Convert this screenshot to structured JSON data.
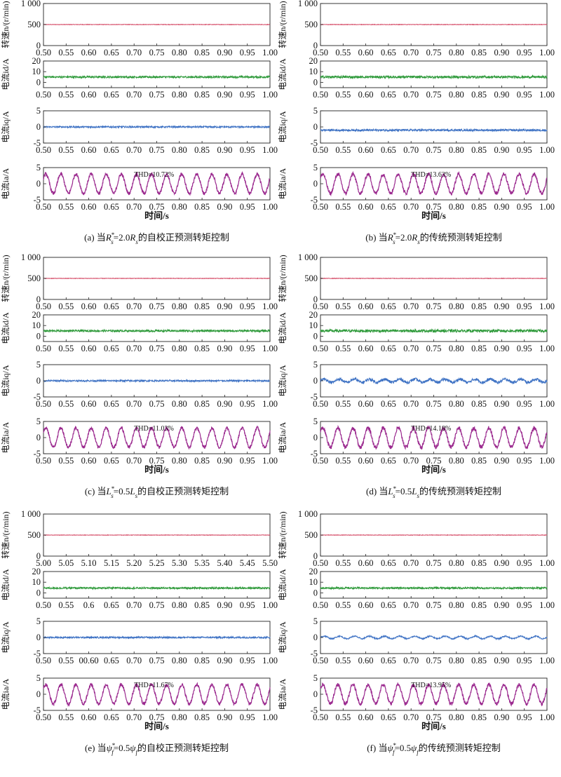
{
  "chart_data": [
    {
      "type": "line",
      "caption": "(a) 当R*s=2.0Rs的自校正预测转矩控制",
      "caption_parts": [
        "(a) 当",
        "R",
        "*",
        "s",
        "=2.0",
        "R",
        "s",
        "的自校正预测转矩控制"
      ],
      "xlabel": "时间/s",
      "panels": [
        {
          "ylabel": "转速n/(r/min)",
          "yticks": [
            "0",
            "500",
            "1 000"
          ],
          "ylim": [
            0,
            1000
          ],
          "xticks": [
            "0.50",
            "0.55",
            "0.60",
            "0.65",
            "0.70",
            "0.75",
            "0.80",
            "0.85",
            "0.90",
            "0.95",
            "1.00"
          ],
          "xlim": [
            0.5,
            1.0
          ],
          "signal": {
            "kind": "flat",
            "level": 500,
            "noise": 6
          },
          "color": "#d64f6a"
        },
        {
          "ylabel": "电流id/A",
          "yticks": [
            "0",
            "10",
            "20"
          ],
          "ylim": [
            -5,
            20
          ],
          "xticks": [
            "0.50",
            "0.55",
            "0.60",
            "0.65",
            "0.70",
            "0.75",
            "0.80",
            "0.85",
            "0.90",
            "0.95",
            "1.00"
          ],
          "xlim": [
            0.5,
            1.0
          ],
          "signal": {
            "kind": "flat",
            "level": 5,
            "noise": 0.9
          },
          "color": "#2e9a3a"
        },
        {
          "ylabel": "电流iq/A",
          "yticks": [
            "-5",
            "0",
            "5"
          ],
          "ylim": [
            -5,
            5
          ],
          "xticks": [
            "0.50",
            "0.55",
            "0.60",
            "0.65",
            "0.70",
            "0.75",
            "0.80",
            "0.85",
            "0.90",
            "0.95",
            "1.00"
          ],
          "xlim": [
            0.5,
            1.0
          ],
          "signal": {
            "kind": "flat",
            "level": 0,
            "noise": 0.25
          },
          "color": "#3e72c4"
        },
        {
          "ylabel": "电流ia/A",
          "yticks": [
            "-5",
            "0",
            "5"
          ],
          "ylim": [
            -5,
            5
          ],
          "xticks": [
            "0.50",
            "0.55",
            "0.60",
            "0.65",
            "0.70",
            "0.75",
            "0.80",
            "0.85",
            "0.90",
            "0.95",
            "1.00"
          ],
          "xlim": [
            0.5,
            1.0
          ],
          "signal": {
            "kind": "sine",
            "amplitude": 3,
            "frequency": 30,
            "noise": 0.5
          },
          "color": "#9b2a8f",
          "annotation": "THD=10.72%"
        }
      ]
    },
    {
      "type": "line",
      "caption": "(b) 当R*s=2.0Rs的传统预测转矩控制",
      "caption_parts": [
        "(b) 当",
        "R",
        "*",
        "s",
        "=2.0",
        "R",
        "s",
        "的传统预测转矩控制"
      ],
      "xlabel": "时间/s",
      "panels": [
        {
          "ylabel": "转速n/(r/min)",
          "yticks": [
            "0",
            "500",
            "1 000"
          ],
          "ylim": [
            0,
            1000
          ],
          "xticks": [
            "0.50",
            "0.55",
            "0.60",
            "0.65",
            "0.70",
            "0.75",
            "0.80",
            "0.85",
            "0.90",
            "0.95",
            "1.00"
          ],
          "xlim": [
            0.5,
            1.0
          ],
          "signal": {
            "kind": "flat",
            "level": 500,
            "noise": 6
          },
          "color": "#d64f6a"
        },
        {
          "ylabel": "电流id/A",
          "yticks": [
            "0",
            "10",
            "20"
          ],
          "ylim": [
            -5,
            20
          ],
          "xticks": [
            "0.50",
            "0.55",
            "0.60",
            "0.65",
            "0.70",
            "0.75",
            "0.80",
            "0.85",
            "0.90",
            "0.95",
            "1.00"
          ],
          "xlim": [
            0.5,
            1.0
          ],
          "signal": {
            "kind": "flat",
            "level": 5,
            "noise": 1.1
          },
          "color": "#2e9a3a"
        },
        {
          "ylabel": "电流iq/A",
          "yticks": [
            "-5",
            "0",
            "5"
          ],
          "ylim": [
            -5,
            5
          ],
          "xticks": [
            "0.50",
            "0.55",
            "0.60",
            "0.65",
            "0.70",
            "0.75",
            "0.80",
            "0.85",
            "0.90",
            "0.95",
            "1.00"
          ],
          "xlim": [
            0.5,
            1.0
          ],
          "signal": {
            "kind": "flat",
            "level": -1,
            "noise": 0.3
          },
          "color": "#3e72c4"
        },
        {
          "ylabel": "电流ia/A",
          "yticks": [
            "-5",
            "0",
            "5"
          ],
          "ylim": [
            -5,
            5
          ],
          "xticks": [
            "0.50",
            "0.55",
            "0.60",
            "0.65",
            "0.70",
            "0.75",
            "0.80",
            "0.85",
            "0.90",
            "0.95",
            "1.00"
          ],
          "xlim": [
            0.5,
            1.0
          ],
          "signal": {
            "kind": "sine",
            "amplitude": 3,
            "frequency": 30,
            "noise": 0.55
          },
          "color": "#9b2a8f",
          "annotation": "THD=13.63%"
        }
      ]
    },
    {
      "type": "line",
      "caption": "(c) 当L*s=0.5Ls的自校正预测转矩控制",
      "caption_parts": [
        "(c) 当",
        "L",
        "*",
        "s",
        "=0.5",
        "L",
        "s",
        "的自校正预测转矩控制"
      ],
      "xlabel": "时间/s",
      "panels": [
        {
          "ylabel": "转速n/(r/min)",
          "yticks": [
            "0",
            "500",
            "1 000"
          ],
          "ylim": [
            0,
            1000
          ],
          "xticks": [
            "0.50",
            "0.55",
            "0.60",
            "0.65",
            "0.70",
            "0.75",
            "0.80",
            "0.85",
            "0.90",
            "0.95",
            "1.00"
          ],
          "xlim": [
            0.5,
            1.0
          ],
          "signal": {
            "kind": "flat",
            "level": 500,
            "noise": 6
          },
          "color": "#d64f6a"
        },
        {
          "ylabel": "电流id/A",
          "yticks": [
            "0",
            "10",
            "20"
          ],
          "ylim": [
            -5,
            20
          ],
          "xticks": [
            "0.50",
            "0.55",
            "0.60",
            "0.65",
            "0.70",
            "0.75",
            "0.80",
            "0.85",
            "0.90",
            "0.95",
            "1.00"
          ],
          "xlim": [
            0.5,
            1.0
          ],
          "signal": {
            "kind": "flat",
            "level": 5,
            "noise": 0.9
          },
          "color": "#2e9a3a"
        },
        {
          "ylabel": "电流iq/A",
          "yticks": [
            "-5",
            "0",
            "5"
          ],
          "ylim": [
            -5,
            5
          ],
          "xticks": [
            "0.50",
            "0.55",
            "0.60",
            "0.65",
            "0.70",
            "0.75",
            "0.80",
            "0.85",
            "0.90",
            "0.95",
            "1.00"
          ],
          "xlim": [
            0.5,
            1.0
          ],
          "signal": {
            "kind": "flat",
            "level": 0,
            "noise": 0.25
          },
          "color": "#3e72c4"
        },
        {
          "ylabel": "电流ia/A",
          "yticks": [
            "-5",
            "0",
            "5"
          ],
          "ylim": [
            -5,
            5
          ],
          "xticks": [
            "0.50",
            "0.55",
            "0.60",
            "0.65",
            "0.70",
            "0.75",
            "0.80",
            "0.85",
            "0.90",
            "0.95",
            "1.00"
          ],
          "xlim": [
            0.5,
            1.0
          ],
          "signal": {
            "kind": "sine",
            "amplitude": 3,
            "frequency": 30,
            "noise": 0.5
          },
          "color": "#9b2a8f",
          "annotation": "THD=11.03%"
        }
      ]
    },
    {
      "type": "line",
      "caption": "(d) 当L*s=0.5Ls的传统预测转矩控制",
      "caption_parts": [
        "(d) 当",
        "L",
        "*",
        "s",
        "=0.5",
        "L",
        "s",
        "的传统预测转矩控制"
      ],
      "xlabel": "时间/s",
      "panels": [
        {
          "ylabel": "转速n/(r/min)",
          "yticks": [
            "0",
            "500",
            "1 000"
          ],
          "ylim": [
            0,
            1000
          ],
          "xticks": [
            "0.50",
            "0.55",
            "0.60",
            "0.65",
            "0.70",
            "0.75",
            "0.80",
            "0.85",
            "0.90",
            "0.95",
            "1.00"
          ],
          "xlim": [
            0.5,
            1.0
          ],
          "signal": {
            "kind": "flat",
            "level": 500,
            "noise": 6
          },
          "color": "#d64f6a"
        },
        {
          "ylabel": "电流id/A",
          "yticks": [
            "0",
            "10",
            "20"
          ],
          "ylim": [
            -5,
            20
          ],
          "xticks": [
            "0.50",
            "0.55",
            "0.60",
            "0.65",
            "0.70",
            "0.75",
            "0.80",
            "0.85",
            "0.90",
            "0.95",
            "1.00"
          ],
          "xlim": [
            0.5,
            1.0
          ],
          "signal": {
            "kind": "flat",
            "level": 5,
            "noise": 1.3
          },
          "color": "#2e9a3a"
        },
        {
          "ylabel": "电流iq/A",
          "yticks": [
            "-5",
            "0",
            "5"
          ],
          "ylim": [
            -5,
            5
          ],
          "xticks": [
            "0.50",
            "0.55",
            "0.60",
            "0.65",
            "0.70",
            "0.75",
            "0.80",
            "0.85",
            "0.90",
            "0.95",
            "1.00"
          ],
          "xlim": [
            0.5,
            1.0
          ],
          "signal": {
            "kind": "ripple",
            "level": 0,
            "amplitude": 0.5,
            "frequency": 30,
            "noise": 0.45
          },
          "color": "#3e72c4"
        },
        {
          "ylabel": "电流ia/A",
          "yticks": [
            "-5",
            "0",
            "5"
          ],
          "ylim": [
            -5,
            5
          ],
          "xticks": [
            "0.50",
            "0.55",
            "0.60",
            "0.65",
            "0.70",
            "0.75",
            "0.80",
            "0.85",
            "0.90",
            "0.95",
            "1.00"
          ],
          "xlim": [
            0.5,
            1.0
          ],
          "signal": {
            "kind": "sine",
            "amplitude": 3,
            "frequency": 30,
            "noise": 0.6
          },
          "color": "#9b2a8f",
          "annotation": "THD=14.18%"
        }
      ]
    },
    {
      "type": "line",
      "caption": "(e) 当ψ*f=0.5ψf的自校正预测转矩控制",
      "caption_parts": [
        "(e) 当",
        "ψ",
        "*",
        "f",
        "=0.5",
        "ψ",
        "f",
        "的自校正预测转矩控制"
      ],
      "xlabel": "时间/s",
      "panels": [
        {
          "ylabel": "转速n/(r/min)",
          "yticks": [
            "0",
            "500",
            "1 000"
          ],
          "ylim": [
            0,
            1000
          ],
          "xticks": [
            "5.00",
            "5.05",
            "5.10",
            "5.15",
            "5.20",
            "5.25",
            "5.30",
            "5.35",
            "5.40",
            "5.45",
            "5.50"
          ],
          "xlim": [
            5.0,
            5.5
          ],
          "signal": {
            "kind": "flat",
            "level": 500,
            "noise": 6
          },
          "color": "#d64f6a"
        },
        {
          "ylabel": "电流id/A",
          "yticks": [
            "0",
            "10",
            "20"
          ],
          "ylim": [
            -5,
            20
          ],
          "xticks": [
            "0.50",
            "0.55",
            "0.6",
            "0.65",
            "0.70",
            "0.75",
            "0.80",
            "0.85",
            "0.90",
            "0.95",
            "1.00"
          ],
          "xlim": [
            0.5,
            1.0
          ],
          "signal": {
            "kind": "flat",
            "level": 4.5,
            "noise": 0.8
          },
          "color": "#2e9a3a"
        },
        {
          "ylabel": "电流iq/A",
          "yticks": [
            "-5",
            "0",
            "5"
          ],
          "ylim": [
            -5,
            5
          ],
          "xticks": [
            "0.50",
            "0.55",
            "00.60",
            "0.65",
            "0.70",
            "0.75",
            "0.80",
            "0.85",
            "0.90",
            "0.95",
            "1.00"
          ],
          "xlim": [
            0.5,
            1.0
          ],
          "signal": {
            "kind": "flat",
            "level": 0,
            "noise": 0.25
          },
          "color": "#3e72c4"
        },
        {
          "ylabel": "电流ia/A",
          "yticks": [
            "-5",
            "0",
            "5"
          ],
          "ylim": [
            -5,
            5
          ],
          "xticks": [
            "0.50",
            "0.55",
            "0.60",
            "0.65",
            "0.70",
            "0.75",
            "0.80",
            "0.85",
            "0.90",
            "0.95",
            "1.00"
          ],
          "xlim": [
            0.5,
            1.0
          ],
          "signal": {
            "kind": "sine",
            "amplitude": 3,
            "frequency": 30,
            "noise": 0.5
          },
          "color": "#9b2a8f",
          "annotation": "THD=11.67%"
        }
      ]
    },
    {
      "type": "line",
      "caption": "(f) 当ψ*f=0.5ψf的传统预测转矩控制",
      "caption_parts": [
        "(f) 当",
        "ψ",
        "*",
        "f",
        "=0.5",
        "ψ",
        "f",
        "的传统预测转矩控制"
      ],
      "xlabel": "时间/s",
      "panels": [
        {
          "ylabel": "转速n/(r/min)",
          "yticks": [
            "0",
            "500",
            "1 000"
          ],
          "ylim": [
            0,
            1000
          ],
          "xticks": [
            "0.50",
            "0.55",
            "0.60",
            "0.65",
            "0.70",
            "0.75",
            "0.80",
            "0.85",
            "0.90",
            "0.95",
            "1.00"
          ],
          "xlim": [
            0.5,
            1.0
          ],
          "signal": {
            "kind": "flat",
            "level": 500,
            "noise": 6
          },
          "color": "#d64f6a"
        },
        {
          "ylabel": "电流id/A",
          "yticks": [
            "0",
            "10",
            "20"
          ],
          "ylim": [
            -5,
            20
          ],
          "xticks": [
            "0.50",
            "0.55",
            "0.60",
            "0.65",
            "0.70",
            "0.75",
            "0.80",
            "0.85",
            "0.90",
            "0.95",
            "1.00"
          ],
          "xlim": [
            0.5,
            1.0
          ],
          "signal": {
            "kind": "flat",
            "level": 4.5,
            "noise": 0.8
          },
          "color": "#2e9a3a"
        },
        {
          "ylabel": "电流iq/A",
          "yticks": [
            "-5",
            "0",
            "5"
          ],
          "ylim": [
            -5,
            5
          ],
          "xticks": [
            "0.50",
            "0.55",
            "0.60",
            "0.65",
            "0.70",
            "0.75",
            "0.80",
            "0.85",
            "0.90",
            "0.95",
            "1.00"
          ],
          "xlim": [
            0.5,
            1.0
          ],
          "signal": {
            "kind": "ripple",
            "level": 0,
            "amplitude": 0.4,
            "frequency": 30,
            "noise": 0.2
          },
          "color": "#3e72c4"
        },
        {
          "ylabel": "电流ia/A",
          "yticks": [
            "-5",
            "0",
            "5"
          ],
          "ylim": [
            -5,
            5
          ],
          "xticks": [
            "0.50",
            "0.55",
            "0.60",
            "0.65",
            "0.70",
            "0.75",
            "0.80",
            "0.85",
            "0.90",
            "0.95",
            "1.00"
          ],
          "xlim": [
            0.5,
            1.0
          ],
          "signal": {
            "kind": "sine",
            "amplitude": 3,
            "frequency": 30,
            "noise": 0.55
          },
          "color": "#9b2a8f",
          "annotation": "THD=13.95%"
        }
      ]
    }
  ]
}
